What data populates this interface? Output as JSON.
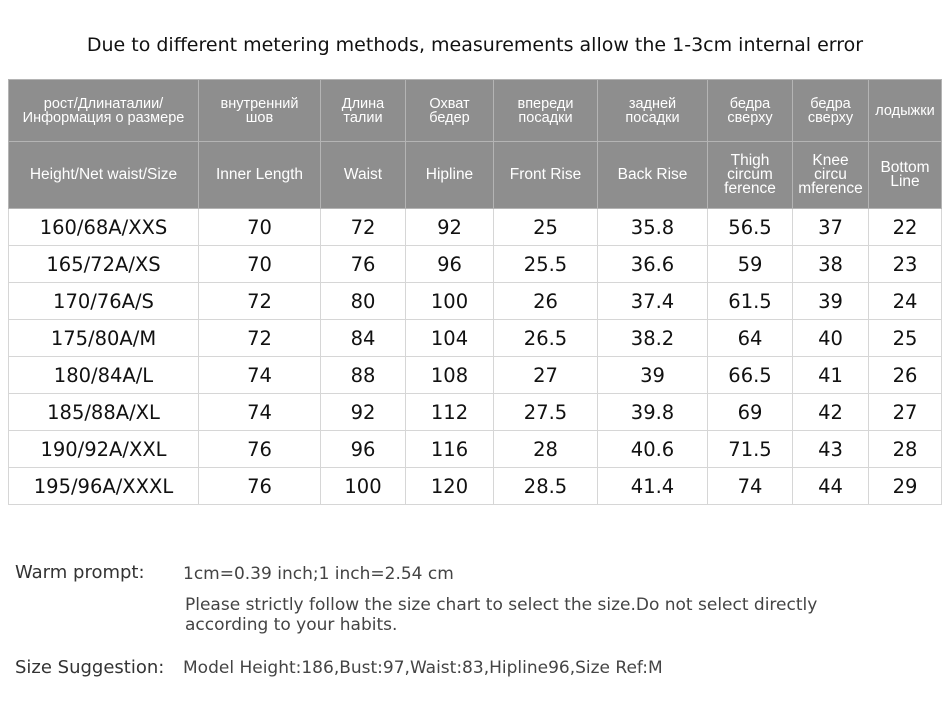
{
  "title": "Due to different metering methods, measurements allow the 1-3cm internal error",
  "table": {
    "header_ru": [
      "рост/Длинаталии/\nИнформация о размере",
      "внутренний\nшов",
      "Длина\nталии",
      "Охват\nбедер",
      "впереди\nпосадки",
      "задней\nпосадки",
      "бедра\nсверху",
      "бедра\nсверху",
      "лодыжки"
    ],
    "header_en": [
      "Height/Net waist/Size",
      "Inner  Length",
      "Waist",
      "Hipline",
      "Front Rise",
      "Back Rise",
      "Thigh\ncircum\nference",
      "Knee\ncircu\nmference",
      "Bottom\nLine"
    ],
    "rows": [
      [
        "160/68A/XXS",
        70,
        72,
        92,
        25,
        35.8,
        56.5,
        37,
        22
      ],
      [
        "165/72A/XS",
        70,
        76,
        96,
        25.5,
        36.6,
        59,
        38,
        23
      ],
      [
        "170/76A/S",
        72,
        80,
        100,
        26,
        37.4,
        61.5,
        39,
        24
      ],
      [
        "175/80A/M",
        72,
        84,
        104,
        26.5,
        38.2,
        64,
        40,
        25
      ],
      [
        "180/84A/L",
        74,
        88,
        108,
        27,
        39,
        66.5,
        41,
        26
      ],
      [
        "185/88A/XL",
        74,
        92,
        112,
        27.5,
        39.8,
        69,
        42,
        27
      ],
      [
        "190/92A/XXL",
        76,
        96,
        116,
        28,
        40.6,
        71.5,
        43,
        28
      ],
      [
        "195/96A/XXXL",
        76,
        100,
        120,
        28.5,
        41.4,
        74,
        44,
        29
      ]
    ]
  },
  "notes": {
    "warm_label": "Warm prompt:",
    "warm_lines": [
      "1cm=0.39 inch;1 inch=2.54 cm",
      "Please strictly follow the size chart  to select the size.Do not select directly",
      "according to your habits."
    ],
    "suggestion_label": "Size Suggestion:",
    "suggestion": "Model Height:186,Bust:97,Waist:83,Hipline96,Size Ref:M"
  }
}
